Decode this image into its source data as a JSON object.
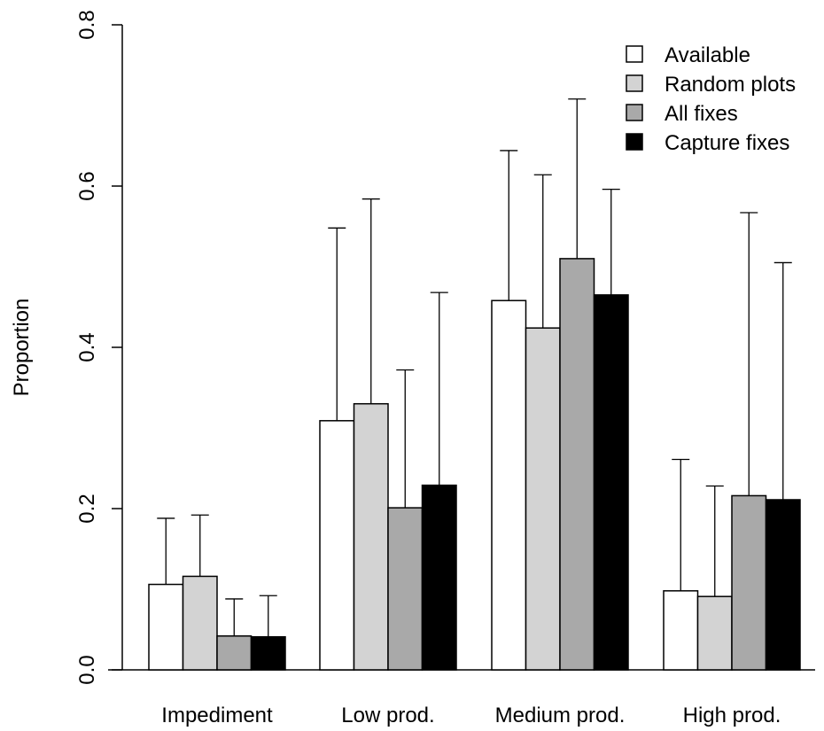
{
  "chart_data": {
    "type": "bar",
    "title": "",
    "xlabel": "",
    "ylabel": "Proportion",
    "ylim": [
      0,
      0.8
    ],
    "yticks": [
      "0.0",
      "0.2",
      "0.4",
      "0.6",
      "0.8"
    ],
    "categories": [
      "Impediment",
      "Low prod.",
      "Medium prod.",
      "High prod."
    ],
    "series": [
      {
        "name": "Available",
        "color": "#ffffff",
        "values": [
          0.106,
          0.309,
          0.458,
          0.098
        ],
        "err_upper": [
          0.188,
          0.548,
          0.644,
          0.261
        ]
      },
      {
        "name": "Random plots",
        "color": "#d3d3d3",
        "values": [
          0.116,
          0.33,
          0.424,
          0.091
        ],
        "err_upper": [
          0.192,
          0.584,
          0.614,
          0.228
        ]
      },
      {
        "name": "All fixes",
        "color": "#a9a9a9",
        "values": [
          0.042,
          0.201,
          0.51,
          0.216
        ],
        "err_upper": [
          0.088,
          0.372,
          0.708,
          0.567
        ]
      },
      {
        "name": "Capture fixes",
        "color": "#000000",
        "values": [
          0.041,
          0.229,
          0.465,
          0.211
        ],
        "err_upper": [
          0.092,
          0.468,
          0.596,
          0.505
        ]
      }
    ],
    "legend_position": "top-right",
    "grid": false
  }
}
